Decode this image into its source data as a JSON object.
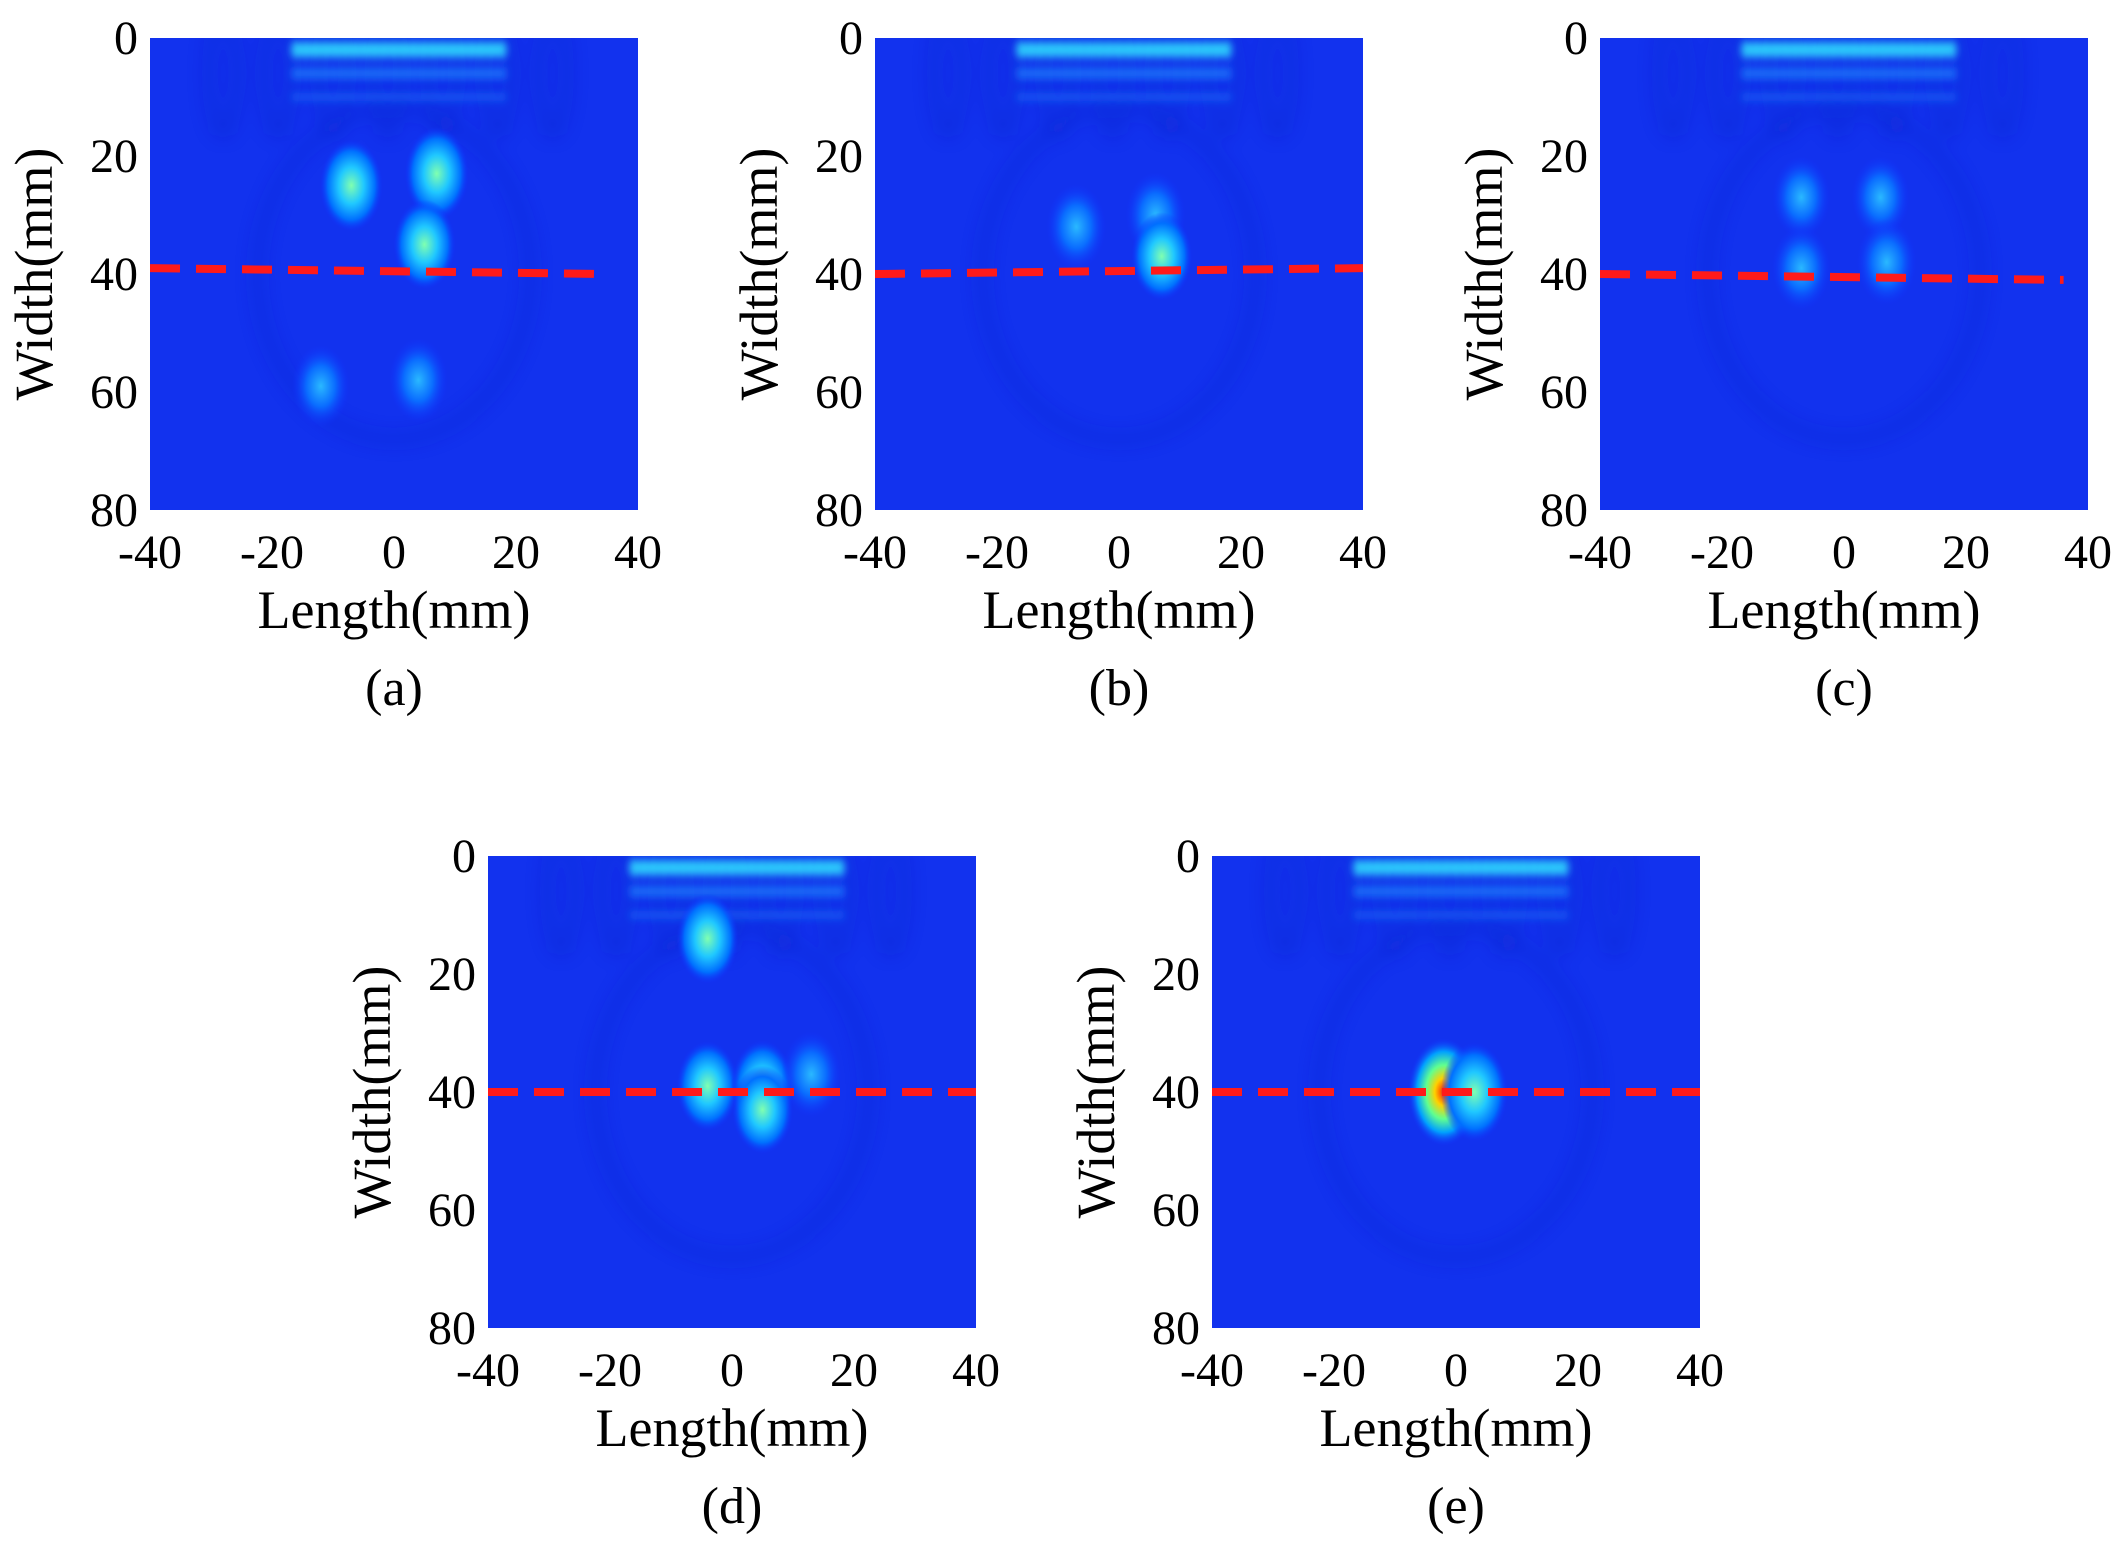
{
  "figure": {
    "panels": [
      {
        "id": "a",
        "caption": "(a)",
        "chart_data": {
          "type": "heatmap",
          "xlabel": "Length(mm)",
          "ylabel": "Width(mm)",
          "xlim": [
            -40,
            40
          ],
          "ylim": [
            0,
            80
          ],
          "y_inverted": true,
          "xticks": [
            "-40",
            "-20",
            "0",
            "20",
            "40"
          ],
          "yticks": [
            "0",
            "20",
            "40",
            "60",
            "80"
          ],
          "colormap": "jet",
          "reference_line": {
            "style": "dashed",
            "color": "#ff1a1a",
            "x": [
              -40,
              35
            ],
            "y": [
              39,
              40
            ]
          },
          "hotspots": [
            {
              "x": -7,
              "y": 25,
              "intensity": 0.55
            },
            {
              "x": 7,
              "y": 23,
              "intensity": 0.6
            },
            {
              "x": 5,
              "y": 35,
              "intensity": 0.5
            },
            {
              "x": -12,
              "y": 59,
              "intensity": 0.3
            },
            {
              "x": 4,
              "y": 58,
              "intensity": 0.35
            }
          ]
        }
      },
      {
        "id": "b",
        "caption": "(b)",
        "chart_data": {
          "type": "heatmap",
          "xlabel": "Length(mm)",
          "ylabel": "Width(mm)",
          "xlim": [
            -40,
            40
          ],
          "ylim": [
            0,
            80
          ],
          "y_inverted": true,
          "xticks": [
            "-40",
            "-20",
            "0",
            "20",
            "40"
          ],
          "yticks": [
            "0",
            "20",
            "40",
            "60",
            "80"
          ],
          "colormap": "jet",
          "reference_line": {
            "style": "dashed",
            "color": "#ff1a1a",
            "x": [
              -40,
              40
            ],
            "y": [
              40,
              39
            ]
          },
          "hotspots": [
            {
              "x": -7,
              "y": 32,
              "intensity": 0.4
            },
            {
              "x": 6,
              "y": 30,
              "intensity": 0.4
            },
            {
              "x": 7,
              "y": 37,
              "intensity": 0.45
            }
          ]
        }
      },
      {
        "id": "c",
        "caption": "(c)",
        "chart_data": {
          "type": "heatmap",
          "xlabel": "Length(mm)",
          "ylabel": "Width(mm)",
          "xlim": [
            -40,
            40
          ],
          "ylim": [
            0,
            80
          ],
          "y_inverted": true,
          "xticks": [
            "-40",
            "-20",
            "0",
            "20",
            "40"
          ],
          "yticks": [
            "0",
            "20",
            "40",
            "60",
            "80"
          ],
          "colormap": "jet",
          "reference_line": {
            "style": "dashed",
            "color": "#ff1a1a",
            "x": [
              -40,
              36
            ],
            "y": [
              40,
              41
            ]
          },
          "hotspots": [
            {
              "x": -7,
              "y": 27,
              "intensity": 0.3
            },
            {
              "x": 6,
              "y": 27,
              "intensity": 0.3
            },
            {
              "x": -7,
              "y": 39,
              "intensity": 0.35
            },
            {
              "x": 7,
              "y": 38,
              "intensity": 0.4
            }
          ]
        }
      },
      {
        "id": "d",
        "caption": "(d)",
        "chart_data": {
          "type": "heatmap",
          "xlabel": "Length(mm)",
          "ylabel": "Width(mm)",
          "xlim": [
            -40,
            40
          ],
          "ylim": [
            0,
            80
          ],
          "y_inverted": true,
          "xticks": [
            "-40",
            "-20",
            "0",
            "20",
            "40"
          ],
          "yticks": [
            "0",
            "20",
            "40",
            "60",
            "80"
          ],
          "colormap": "jet",
          "reference_line": {
            "style": "dashed",
            "color": "#ff1a1a",
            "x": [
              -40,
              40
            ],
            "y": [
              40,
              40
            ]
          },
          "hotspots": [
            {
              "x": -4,
              "y": 14,
              "intensity": 0.5
            },
            {
              "x": -4,
              "y": 39,
              "intensity": 0.5
            },
            {
              "x": 5,
              "y": 39,
              "intensity": 0.55
            },
            {
              "x": 5,
              "y": 43,
              "intensity": 0.45
            },
            {
              "x": 13,
              "y": 37,
              "intensity": 0.4
            }
          ]
        }
      },
      {
        "id": "e",
        "caption": "(e)",
        "chart_data": {
          "type": "heatmap",
          "xlabel": "Length(mm)",
          "ylabel": "Width(mm)",
          "xlim": [
            -40,
            40
          ],
          "ylim": [
            0,
            80
          ],
          "y_inverted": true,
          "xticks": [
            "-40",
            "-20",
            "0",
            "20",
            "40"
          ],
          "yticks": [
            "0",
            "20",
            "40",
            "60",
            "80"
          ],
          "colormap": "jet",
          "reference_line": {
            "style": "dashed",
            "color": "#ff1a1a",
            "x": [
              -40,
              40
            ],
            "y": [
              40,
              40
            ]
          },
          "hotspots": [
            {
              "x": -2,
              "y": 40,
              "intensity": 1.0
            },
            {
              "x": 3,
              "y": 40,
              "intensity": 0.75
            }
          ]
        }
      }
    ]
  }
}
